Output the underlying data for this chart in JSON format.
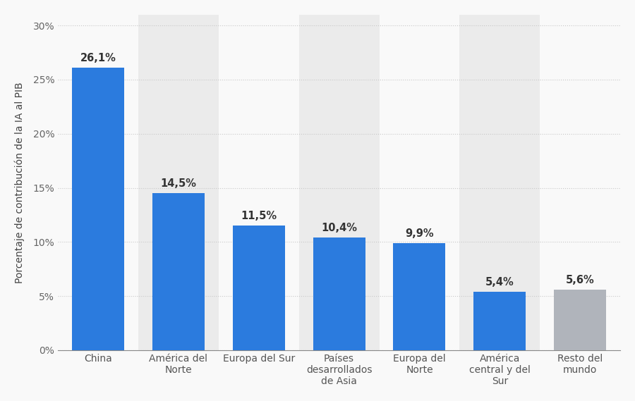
{
  "categories": [
    "China",
    "América del\nNorte",
    "Europa del Sur",
    "Países\ndesarrollados\nde Asia",
    "Europa del\nNorte",
    "América\ncentral y del\nSur",
    "Resto del\nmundo"
  ],
  "values": [
    26.1,
    14.5,
    11.5,
    10.4,
    9.9,
    5.4,
    5.6
  ],
  "bar_colors": [
    "#2b7bde",
    "#2b7bde",
    "#2b7bde",
    "#2b7bde",
    "#2b7bde",
    "#2b7bde",
    "#b0b4bb"
  ],
  "labels": [
    "26,1%",
    "14,5%",
    "11,5%",
    "10,4%",
    "9,9%",
    "5,4%",
    "5,6%"
  ],
  "shaded_indices": [
    1,
    3,
    5
  ],
  "shade_color": "#ebebeb",
  "ylabel": "Porcentaje de contribución de la IA al PIB",
  "ylim": [
    0,
    31
  ],
  "yticks": [
    0,
    5,
    10,
    15,
    20,
    25,
    30
  ],
  "ytick_labels": [
    "0%",
    "5%",
    "10%",
    "15%",
    "20%",
    "25%",
    "30%"
  ],
  "background_color": "#f9f9f9",
  "plot_bg_color": "#f9f9f9",
  "grid_color": "#c8c8c8",
  "bar_width": 0.65,
  "label_fontsize": 10.5,
  "ylabel_fontsize": 10,
  "tick_fontsize": 10
}
